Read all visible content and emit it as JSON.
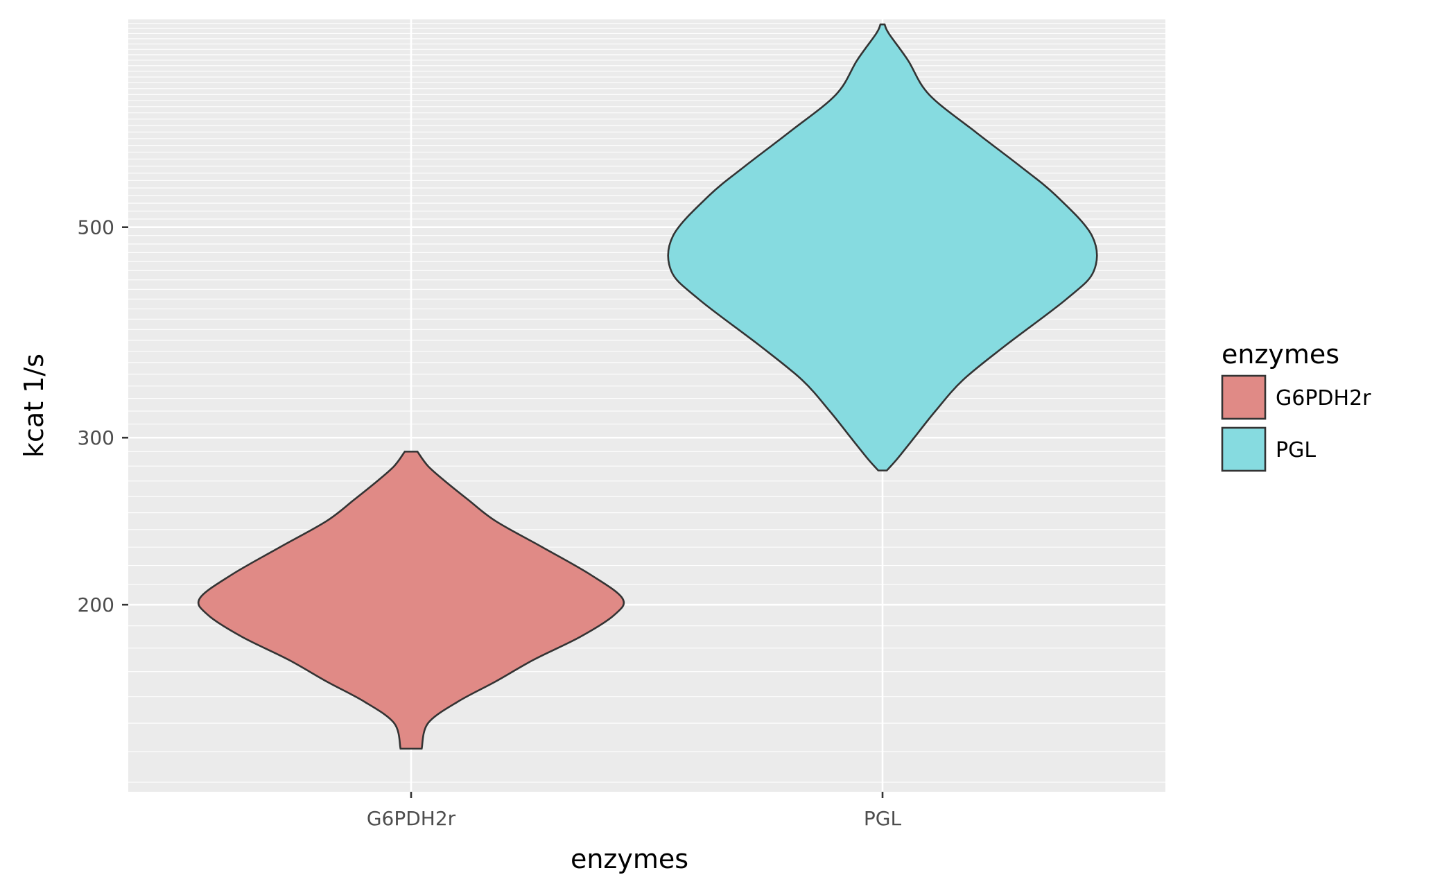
{
  "chart_data": {
    "type": "violin",
    "title": "",
    "xlabel": "enzymes",
    "ylabel": "kcat 1/s",
    "y_scale": "log",
    "ylim": [
      127,
      828
    ],
    "y_ticks": [
      200,
      300,
      500
    ],
    "y_tick_labels": [
      "200",
      "300",
      "500"
    ],
    "categories": [
      "G6PDH2r",
      "PGL"
    ],
    "grid": true,
    "legend": {
      "title": "enzymes",
      "position": "right",
      "entries": [
        {
          "label": "G6PDH2r",
          "color": "#e08a86"
        },
        {
          "label": "PGL",
          "color": "#86dbe0"
        }
      ]
    },
    "series": [
      {
        "category": "G6PDH2r",
        "color": "#e08a86",
        "min": 141,
        "max": 290,
        "density": [
          [
            141,
            0.05
          ],
          [
            150,
            0.08
          ],
          [
            158,
            0.22
          ],
          [
            166,
            0.4
          ],
          [
            175,
            0.58
          ],
          [
            185,
            0.8
          ],
          [
            195,
            0.96
          ],
          [
            203,
            1.0
          ],
          [
            215,
            0.85
          ],
          [
            230,
            0.62
          ],
          [
            245,
            0.4
          ],
          [
            258,
            0.27
          ],
          [
            270,
            0.16
          ],
          [
            280,
            0.08
          ],
          [
            290,
            0.03
          ]
        ]
      },
      {
        "category": "PGL",
        "color": "#86dbe0",
        "min": 277,
        "max": 818,
        "density": [
          [
            277,
            0.02
          ],
          [
            285,
            0.07
          ],
          [
            300,
            0.15
          ],
          [
            320,
            0.25
          ],
          [
            345,
            0.38
          ],
          [
            375,
            0.58
          ],
          [
            420,
            0.87
          ],
          [
            450,
            1.0
          ],
          [
            490,
            0.99
          ],
          [
            540,
            0.82
          ],
          [
            580,
            0.65
          ],
          [
            630,
            0.44
          ],
          [
            690,
            0.22
          ],
          [
            750,
            0.12
          ],
          [
            800,
            0.03
          ],
          [
            818,
            0.01
          ]
        ]
      }
    ]
  }
}
